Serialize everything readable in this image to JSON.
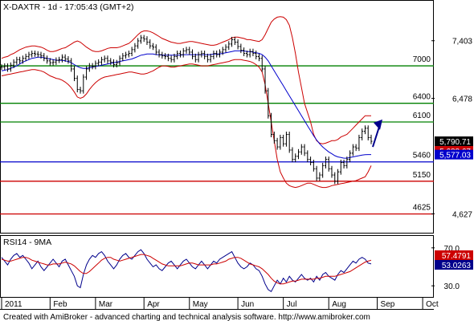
{
  "title": "X-DAXTR - 1d - 17:05:43 (GMT+2)",
  "footer": "Created with AmiBroker - advanced charting and technical analysis software. http://www.amibroker.com",
  "colors": {
    "price": "#000000",
    "bollinger": "#cc0000",
    "ma": "#0000cc",
    "green_line": "#008000",
    "blue_line": "#0000cc",
    "red_line": "#cc0000",
    "arrow": "#00008b",
    "rsi": "#00008b",
    "rsi_ma": "#cc0000"
  },
  "chart_data": {
    "type": "line",
    "price_panel": {
      "y_axis_ticks": [
        "7,403",
        "6,478",
        "4,627"
      ],
      "y_axis_tick_values": [
        7403,
        6478,
        4627
      ],
      "ylim": [
        4350,
        7850
      ],
      "horizontal_lines": [
        {
          "label": "7000",
          "value": 7000,
          "color": "green"
        },
        {
          "label": "6400",
          "value": 6400,
          "color": "green"
        },
        {
          "label": "6100",
          "value": 6100,
          "color": "green"
        },
        {
          "label": "5460",
          "value": 5460,
          "color": "blue"
        },
        {
          "label": "5150",
          "value": 5150,
          "color": "red"
        },
        {
          "label": "4625",
          "value": 4625,
          "color": "red"
        }
      ],
      "value_labels": [
        {
          "text": "5,790.71",
          "value": 5790.71,
          "bg": "#000000"
        },
        {
          "text": "5,688.67",
          "value": 5688.67,
          "bg": "#cc0000"
        },
        {
          "text": "5,577.03",
          "value": 5577.03,
          "bg": "#0000cc"
        }
      ],
      "price_close": [
        6980,
        6995,
        6950,
        7010,
        7060,
        7100,
        7080,
        7120,
        7150,
        7180,
        7200,
        7190,
        7180,
        7160,
        7120,
        7080,
        7050,
        7060,
        7090,
        7100,
        7140,
        7110,
        7080,
        6950,
        6800,
        6620,
        6600,
        6820,
        6950,
        7000,
        6990,
        7040,
        7060,
        7100,
        7120,
        7080,
        7060,
        7020,
        7050,
        7120,
        7160,
        7180,
        7200,
        7260,
        7320,
        7400,
        7450,
        7430,
        7380,
        7320,
        7300,
        7220,
        7180,
        7160,
        7150,
        7120,
        7100,
        7150,
        7200,
        7180,
        7240,
        7260,
        7220,
        7150,
        7100,
        7180,
        7200,
        7150,
        7100,
        7150,
        7200,
        7180,
        7220,
        7260,
        7300,
        7350,
        7420,
        7380,
        7310,
        7250,
        7200,
        7180,
        7230,
        7200,
        7150,
        7120,
        6950,
        6600,
        6200,
        5900,
        5800,
        5700,
        5850,
        5750,
        5900,
        5650,
        5500,
        5550,
        5620,
        5700,
        5600,
        5500,
        5450,
        5350,
        5200,
        5250,
        5400,
        5500,
        5350,
        5250,
        5150,
        5300,
        5450,
        5400,
        5500,
        5600,
        5700,
        5680,
        5850,
        5950,
        6000,
        5850,
        5790
      ],
      "series": [
        {
          "name": "Bollinger upper",
          "values": [
            7120,
            7140,
            7150,
            7180,
            7200,
            7230,
            7260,
            7280,
            7300,
            7310,
            7320,
            7320,
            7310,
            7300,
            7280,
            7250,
            7230,
            7230,
            7240,
            7260,
            7280,
            7290,
            7320,
            7350,
            7380,
            7400,
            7380,
            7340,
            7300,
            7270,
            7240,
            7230,
            7230,
            7240,
            7260,
            7280,
            7290,
            7290,
            7290,
            7300,
            7320,
            7340,
            7360,
            7400,
            7450,
            7500,
            7540,
            7560,
            7560,
            7550,
            7530,
            7500,
            7470,
            7440,
            7420,
            7400,
            7380,
            7370,
            7360,
            7360,
            7370,
            7380,
            7390,
            7390,
            7380,
            7370,
            7360,
            7350,
            7340,
            7330,
            7330,
            7340,
            7360,
            7380,
            7400,
            7420,
            7450,
            7460,
            7460,
            7450,
            7440,
            7420,
            7420,
            7410,
            7400,
            7390,
            7420,
            7500,
            7600,
            7700,
            7750,
            7780,
            7790,
            7780,
            7740,
            7650,
            7450,
            7200,
            6900,
            6650,
            6400,
            6250,
            6100,
            5900,
            5800,
            5760,
            5750,
            5760,
            5780,
            5800,
            5800,
            5820,
            5860,
            5880,
            5900,
            5950,
            6000,
            6050,
            6100,
            6150,
            6200,
            6200,
            6200
          ]
        },
        {
          "name": "Bollinger lower",
          "values": [
            6840,
            6850,
            6860,
            6870,
            6880,
            6890,
            6900,
            6910,
            6920,
            6930,
            6940,
            6940,
            6930,
            6920,
            6900,
            6870,
            6840,
            6820,
            6800,
            6790,
            6770,
            6740,
            6700,
            6650,
            6580,
            6500,
            6480,
            6500,
            6550,
            6620,
            6680,
            6730,
            6770,
            6800,
            6820,
            6830,
            6840,
            6850,
            6860,
            6870,
            6880,
            6890,
            6900,
            6900,
            6890,
            6880,
            6870,
            6870,
            6880,
            6900,
            6920,
            6950,
            6980,
            7000,
            7000,
            6990,
            6980,
            6980,
            6990,
            7000,
            7010,
            7020,
            7030,
            7030,
            7020,
            7010,
            7000,
            7000,
            7000,
            7010,
            7020,
            7030,
            7040,
            7050,
            7060,
            7070,
            7090,
            7100,
            7100,
            7100,
            7090,
            7080,
            7070,
            7050,
            7020,
            6980,
            6900,
            6700,
            6400,
            6100,
            5800,
            5500,
            5300,
            5200,
            5120,
            5080,
            5060,
            5050,
            5060,
            5080,
            5100,
            5120,
            5120,
            5100,
            5080,
            5060,
            5050,
            5050,
            5060,
            5080,
            5090,
            5100,
            5110,
            5120,
            5130,
            5140,
            5150,
            5160,
            5180,
            5200,
            5220,
            5300,
            5400
          ]
        },
        {
          "name": "Moving average",
          "values": [
            6920,
            6930,
            6940,
            6960,
            6980,
            7000,
            7030,
            7060,
            7080,
            7100,
            7120,
            7130,
            7140,
            7140,
            7130,
            7120,
            7110,
            7100,
            7090,
            7090,
            7090,
            7080,
            7070,
            7050,
            7020,
            6990,
            6970,
            6960,
            6960,
            6970,
            6980,
            6990,
            7000,
            7010,
            7020,
            7030,
            7040,
            7050,
            7060,
            7070,
            7080,
            7090,
            7100,
            7110,
            7130,
            7150,
            7170,
            7180,
            7190,
            7190,
            7190,
            7180,
            7180,
            7170,
            7170,
            7170,
            7170,
            7170,
            7170,
            7170,
            7180,
            7180,
            7180,
            7180,
            7180,
            7180,
            7180,
            7180,
            7180,
            7180,
            7190,
            7190,
            7190,
            7200,
            7210,
            7220,
            7230,
            7240,
            7240,
            7240,
            7240,
            7230,
            7230,
            7220,
            7210,
            7200,
            7180,
            7140,
            7080,
            7000,
            6920,
            6840,
            6760,
            6680,
            6600,
            6520,
            6440,
            6360,
            6280,
            6200,
            6120,
            6040,
            5960,
            5880,
            5810,
            5750,
            5700,
            5660,
            5620,
            5590,
            5560,
            5540,
            5530,
            5520,
            5520,
            5530,
            5540,
            5550,
            5560,
            5570,
            5575,
            5577,
            5577
          ]
        }
      ]
    },
    "rsi_panel": {
      "title": "RSI14 - 9MA",
      "y_axis_ticks": [
        "70.0",
        "30.0"
      ],
      "y_axis_tick_values": [
        70,
        30
      ],
      "ylim": [
        20,
        80
      ],
      "value_labels": [
        {
          "text": "57.4791",
          "value": 57.4791,
          "bg": "#cc0000"
        },
        {
          "text": "53.0263",
          "value": 53.0263,
          "bg": "#00008b"
        }
      ],
      "series": [
        {
          "name": "RSI14",
          "values": [
            60,
            56,
            52,
            58,
            62,
            64,
            60,
            62,
            58,
            54,
            48,
            52,
            56,
            50,
            46,
            50,
            54,
            58,
            54,
            50,
            56,
            58,
            52,
            46,
            40,
            30,
            28,
            42,
            52,
            58,
            62,
            60,
            64,
            66,
            62,
            56,
            52,
            48,
            52,
            58,
            62,
            64,
            60,
            58,
            62,
            66,
            68,
            64,
            58,
            54,
            50,
            52,
            48,
            46,
            50,
            54,
            56,
            52,
            48,
            52,
            56,
            58,
            54,
            50,
            48,
            52,
            56,
            52,
            48,
            52,
            56,
            54,
            58,
            60,
            62,
            64,
            66,
            60,
            54,
            50,
            48,
            50,
            54,
            52,
            48,
            46,
            40,
            32,
            26,
            24,
            30,
            36,
            32,
            38,
            34,
            40,
            36,
            34,
            38,
            42,
            38,
            36,
            38,
            34,
            40,
            36,
            42,
            44,
            40,
            38,
            36,
            42,
            46,
            44,
            48,
            52,
            56,
            54,
            58,
            60,
            58,
            54,
            53
          ]
        },
        {
          "name": "9MA",
          "values": [
            58,
            57,
            56,
            56,
            57,
            58,
            59,
            60,
            60,
            59,
            57,
            56,
            55,
            54,
            53,
            52,
            52,
            53,
            53,
            53,
            54,
            55,
            54,
            53,
            51,
            48,
            45,
            43,
            43,
            45,
            48,
            51,
            54,
            57,
            59,
            60,
            60,
            58,
            57,
            56,
            57,
            58,
            59,
            60,
            61,
            62,
            63,
            63,
            62,
            61,
            59,
            57,
            55,
            53,
            52,
            51,
            51,
            51,
            51,
            51,
            52,
            53,
            54,
            54,
            53,
            52,
            52,
            52,
            52,
            52,
            53,
            53,
            54,
            55,
            56,
            58,
            59,
            60,
            60,
            59,
            57,
            55,
            53,
            52,
            51,
            50,
            48,
            45,
            42,
            38,
            35,
            33,
            32,
            32,
            33,
            34,
            35,
            35,
            36,
            37,
            37,
            37,
            37,
            37,
            38,
            38,
            39,
            40,
            40,
            40,
            40,
            41,
            42,
            43,
            44,
            45,
            47,
            49,
            51,
            53,
            55,
            56,
            57
          ]
        }
      ]
    },
    "x_axis": {
      "categories": [
        "2011",
        "Feb",
        "Mar",
        "Apr",
        "May",
        "Jun",
        "Jul",
        "Aug",
        "Sep",
        "Oct"
      ],
      "category_index": [
        0,
        16,
        31,
        47,
        62,
        78,
        93,
        108,
        124,
        139
      ]
    },
    "grid": false
  }
}
